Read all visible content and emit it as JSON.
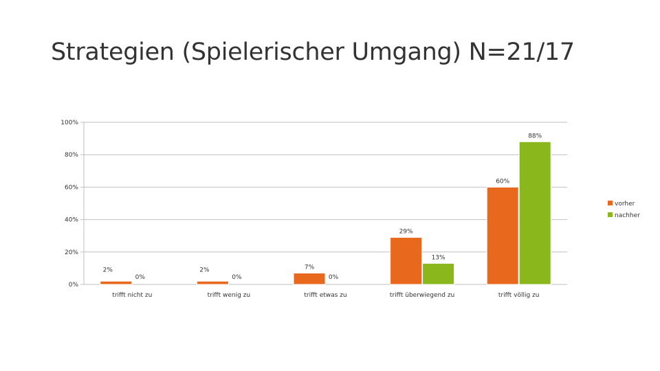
{
  "title": "Strategien (Spielerischer Umgang) N=21/17",
  "chart_data": {
    "type": "bar",
    "categories": [
      "trifft nicht zu",
      "trifft wenig zu",
      "trifft etwas zu",
      "trifft überwiegend zu",
      "trifft völlig zu"
    ],
    "series": [
      {
        "name": "vorher",
        "color": "#E8681E",
        "values": [
          2,
          2,
          7,
          29,
          60
        ],
        "labels": [
          "2%",
          "2%",
          "7%",
          "29%",
          "60%"
        ]
      },
      {
        "name": "nachher",
        "color": "#8AB71B",
        "values": [
          0,
          0,
          0,
          13,
          88
        ],
        "labels": [
          "0%",
          "0%",
          "0%",
          "13%",
          "88%"
        ]
      }
    ],
    "y_ticks": [
      "0%",
      "20%",
      "40%",
      "60%",
      "80%",
      "100%"
    ],
    "ylim": [
      0,
      100
    ],
    "grid": true,
    "legend_position": "right"
  }
}
